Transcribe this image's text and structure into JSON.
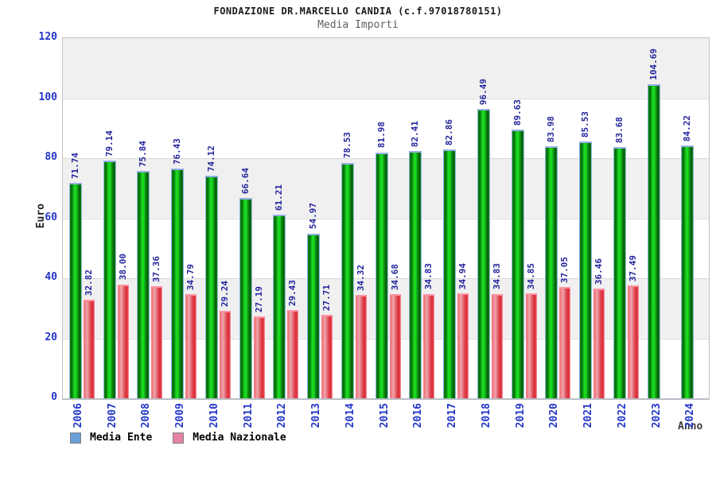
{
  "chart_data": {
    "type": "bar",
    "title": "FONDAZIONE DR.MARCELLO CANDIA (c.f.97018780151)",
    "subtitle": "Media Importi",
    "xlabel": "Anno",
    "ylabel": "Euro",
    "ylim": [
      0,
      120
    ],
    "yticks": [
      0,
      20,
      40,
      60,
      80,
      100,
      120
    ],
    "grid": "alternating-horizontal-bands",
    "legend_position": "bottom-left",
    "value_label_decimals": 2,
    "categories": [
      "2006",
      "2007",
      "2008",
      "2009",
      "2010",
      "2011",
      "2012",
      "2013",
      "2014",
      "2015",
      "2016",
      "2017",
      "2018",
      "2019",
      "2020",
      "2021",
      "2022",
      "2023",
      "2024"
    ],
    "series": [
      {
        "name": "Media Ente",
        "bar_color": "#14c41a",
        "legend_swatch_color": "#6a9fd8",
        "values": [
          71.74,
          79.14,
          75.84,
          76.43,
          74.12,
          66.64,
          61.21,
          54.97,
          78.53,
          81.98,
          82.41,
          82.86,
          96.49,
          89.63,
          83.98,
          85.53,
          83.68,
          104.69,
          84.22
        ]
      },
      {
        "name": "Media Nazionale",
        "bar_color": "#e04a54",
        "legend_swatch_color": "#e783a5",
        "values": [
          32.82,
          38.0,
          37.36,
          34.79,
          29.24,
          27.19,
          29.43,
          27.71,
          34.32,
          34.68,
          34.83,
          34.94,
          34.83,
          34.85,
          37.05,
          36.46,
          37.49,
          null,
          null
        ]
      }
    ]
  },
  "colors": {
    "axis_text": "#2336c8",
    "value_label_text": "#24249e",
    "band_gray": "#f0f0f0",
    "plot_border": "#c3c3c3"
  }
}
